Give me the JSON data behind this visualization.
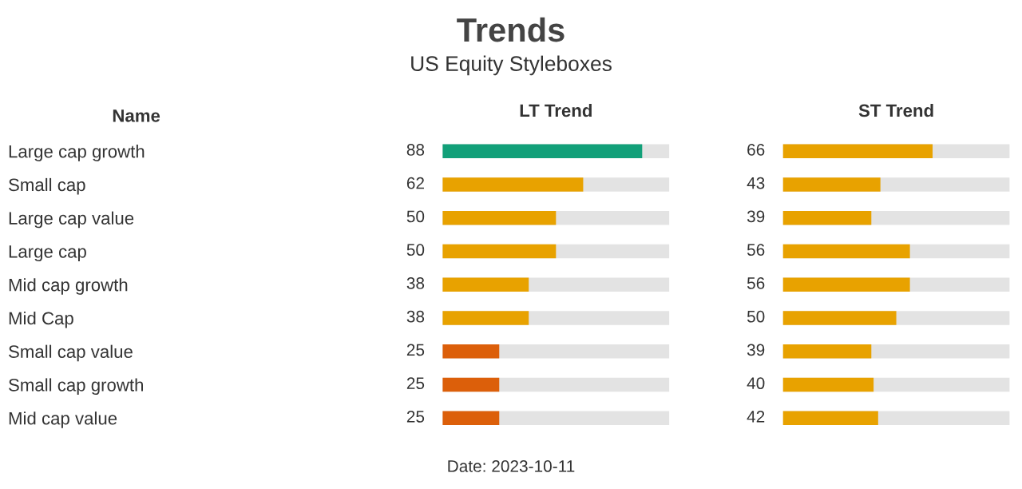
{
  "chart_data": [
    {
      "type": "bar",
      "orientation": "horizontal",
      "title": "Trends",
      "subtitle": "US Equity Styleboxes",
      "ylabel": "Name",
      "xlabel": "LT Trend",
      "categories": [
        "Large cap growth",
        "Small cap",
        "Large cap value",
        "Large cap",
        "Mid cap growth",
        "Mid Cap",
        "Small cap value",
        "Small cap growth",
        "Mid cap value"
      ],
      "values": [
        88,
        62,
        50,
        50,
        38,
        38,
        25,
        25,
        25
      ],
      "colors": [
        "#12a079",
        "#e8a200",
        "#e8a200",
        "#e8a200",
        "#e8a200",
        "#e8a200",
        "#dc5f0a",
        "#dc5f0a",
        "#dc5f0a"
      ],
      "xlim": [
        0,
        100
      ],
      "data_labels": true,
      "tick_labels": "y",
      "grid": false,
      "legend": false,
      "annotations": [
        "Date: 2023-10-11"
      ]
    },
    {
      "type": "bar",
      "orientation": "horizontal",
      "xlabel": "ST Trend",
      "categories": [
        null,
        null,
        null,
        null,
        null,
        null,
        null,
        null,
        null
      ],
      "values": [
        66,
        43,
        39,
        56,
        56,
        50,
        39,
        40,
        42
      ],
      "colors": [
        "#e8a200",
        "#e8a200",
        "#e8a200",
        "#e8a200",
        "#e8a200",
        "#e8a200",
        "#e8a200",
        "#e8a200",
        "#e8a200"
      ],
      "xlim": [
        0,
        100
      ],
      "data_labels": true,
      "tick_labels": false,
      "grid": false,
      "legend": false
    }
  ]
}
